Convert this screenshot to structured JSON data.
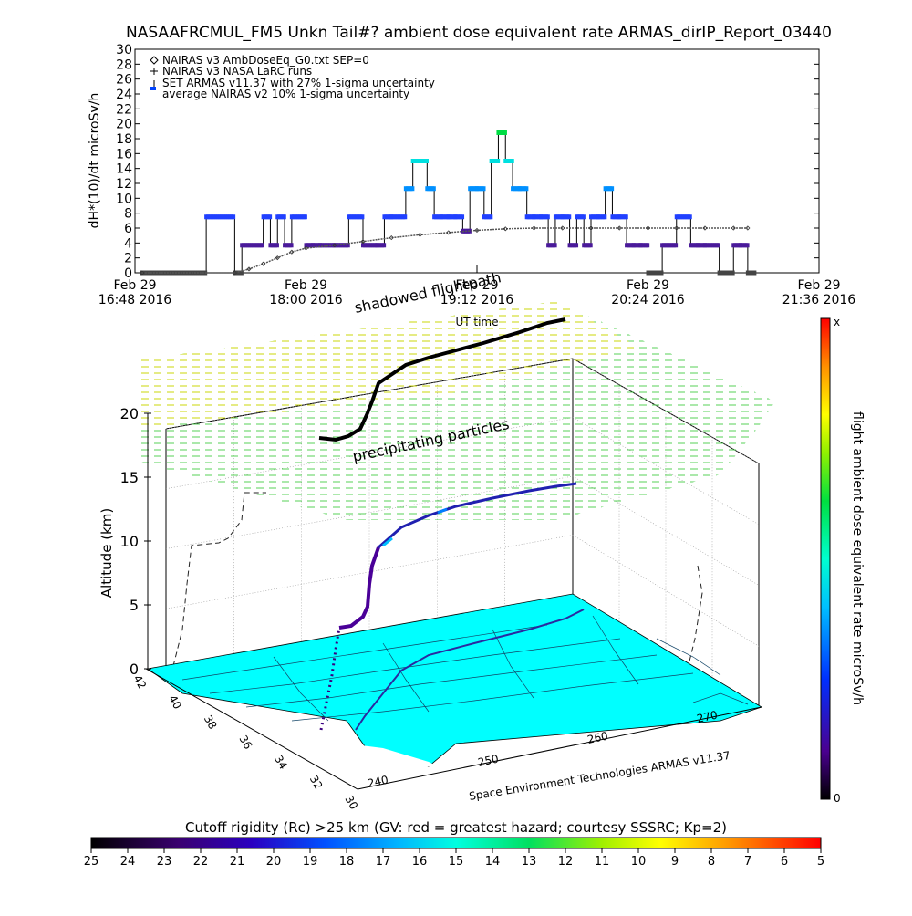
{
  "title": "NASAAFRCMUL_FM5 Unkn Tail#? ambient dose equivalent rate ARMAS_dirIP_Report_03440",
  "chart_data": [
    {
      "type": "line",
      "ylabel": "dH*(10)/dt microSv/h",
      "xlabel": "UT time",
      "ylim": [
        0,
        30
      ],
      "yticks": [
        "0",
        "2",
        "4",
        "6",
        "8",
        "10",
        "12",
        "14",
        "16",
        "18",
        "20",
        "22",
        "24",
        "26",
        "28",
        "30"
      ],
      "xticks": [
        {
          "line1": "Feb 29",
          "line2": "16:48 2016"
        },
        {
          "line1": "Feb 29",
          "line2": "18:00 2016"
        },
        {
          "line1": "Feb 29",
          "line2": "19:12 2016"
        },
        {
          "line1": "Feb 29",
          "line2": "20:24 2016"
        },
        {
          "line1": "Feb 29",
          "line2": "21:36 2016"
        }
      ],
      "xlim_hours": [
        16.8,
        21.6
      ],
      "legend_position": "top-left",
      "legend": [
        "NAIRAS v3 AmbDoseEq_G0.txt SEP=0",
        "NAIRAS v3 NASA LaRC runs",
        "SET ARMAS v11.37 with 27% 1-sigma uncertainty",
        "average NAIRAS v2 10% 1-sigma uncertainty"
      ],
      "series": [
        {
          "name": "SET ARMAS v11.37 with 27% 1-sigma uncertainty",
          "x_hours": [
            16.85,
            17.05,
            17.1,
            17.15,
            17.3,
            17.5,
            17.55,
            17.7,
            17.75,
            17.8,
            17.85,
            17.9,
            18.0,
            18.05,
            18.1,
            18.2,
            18.3,
            18.4,
            18.5,
            18.55,
            18.6,
            18.7,
            18.75,
            18.8,
            18.85,
            18.9,
            18.95,
            19.0,
            19.05,
            19.1,
            19.15,
            19.2,
            19.25,
            19.3,
            19.35,
            19.4,
            19.45,
            19.5,
            19.55,
            19.6,
            19.65,
            19.7,
            19.75,
            19.8,
            19.85,
            19.9,
            19.95,
            20.0,
            20.05,
            20.1,
            20.15,
            20.2,
            20.25,
            20.3,
            20.35,
            20.4,
            20.5,
            20.6,
            20.7,
            20.75,
            20.8,
            20.9,
            21.0,
            21.05,
            21.1
          ],
          "values": [
            0,
            0,
            0,
            0,
            7.5,
            0,
            3.7,
            7.5,
            3.7,
            7.5,
            3.7,
            7.5,
            3.7,
            3.7,
            3.7,
            3.7,
            7.5,
            3.7,
            3.7,
            7.5,
            7.5,
            11.3,
            15,
            15,
            11.3,
            7.5,
            7.5,
            7.5,
            7.5,
            5.6,
            11.3,
            11.3,
            7.5,
            15,
            18.8,
            15,
            11.3,
            11.3,
            7.5,
            7.5,
            7.5,
            3.7,
            7.5,
            7.5,
            3.7,
            7.5,
            3.7,
            7.5,
            7.5,
            11.3,
            7.5,
            7.5,
            3.7,
            3.7,
            3.7,
            0,
            3.7,
            7.5,
            3.7,
            3.7,
            3.7,
            0,
            3.7,
            3.7,
            0
          ]
        },
        {
          "name": "NAIRAS v3 AmbDoseEq_G0.txt SEP=0",
          "x_hours": [
            16.85,
            17.5,
            17.6,
            17.7,
            17.8,
            17.9,
            18.0,
            18.2,
            18.4,
            18.6,
            18.8,
            19.0,
            19.2,
            19.4,
            19.6,
            19.8,
            20.0,
            20.2,
            20.4,
            20.6,
            20.8,
            21.0,
            21.1
          ],
          "values": [
            0,
            0,
            0.5,
            1.2,
            2,
            2.8,
            3.3,
            3.7,
            4.2,
            4.7,
            5.1,
            5.4,
            5.7,
            5.9,
            6.0,
            6.0,
            6.0,
            6.0,
            6.0,
            6.0,
            6.0,
            6.0,
            6.0
          ]
        }
      ]
    },
    {
      "type": "3d-flight-path",
      "zlabel": "Altitude (km)",
      "zlim": [
        0,
        20
      ],
      "zticks": [
        "0",
        "5",
        "10",
        "15",
        "20"
      ],
      "lat_ticks": [
        "42",
        "40",
        "38",
        "36",
        "34",
        "32",
        "30"
      ],
      "lon_ticks": [
        "240",
        "250",
        "260",
        "270"
      ],
      "annotations": [
        "shadowed flightpath",
        "precipitating particles"
      ],
      "credit": "Space Environment Technologies ARMAS v11.37",
      "colorbar_label": "flight ambient dose equivalent rate microSv/h",
      "colorbar_top": "x",
      "colorbar_bottom": "0"
    },
    {
      "type": "colorbar",
      "title": "Cutoff rigidity (Rc) >25 km (GV: red = greatest hazard; courtesy SSSRC; Kp=2)",
      "ticks": [
        "25",
        "24",
        "23",
        "22",
        "21",
        "20",
        "19",
        "18",
        "17",
        "16",
        "15",
        "14",
        "13",
        "12",
        "11",
        "10",
        "9",
        "8",
        "7",
        "6",
        "5"
      ]
    }
  ]
}
